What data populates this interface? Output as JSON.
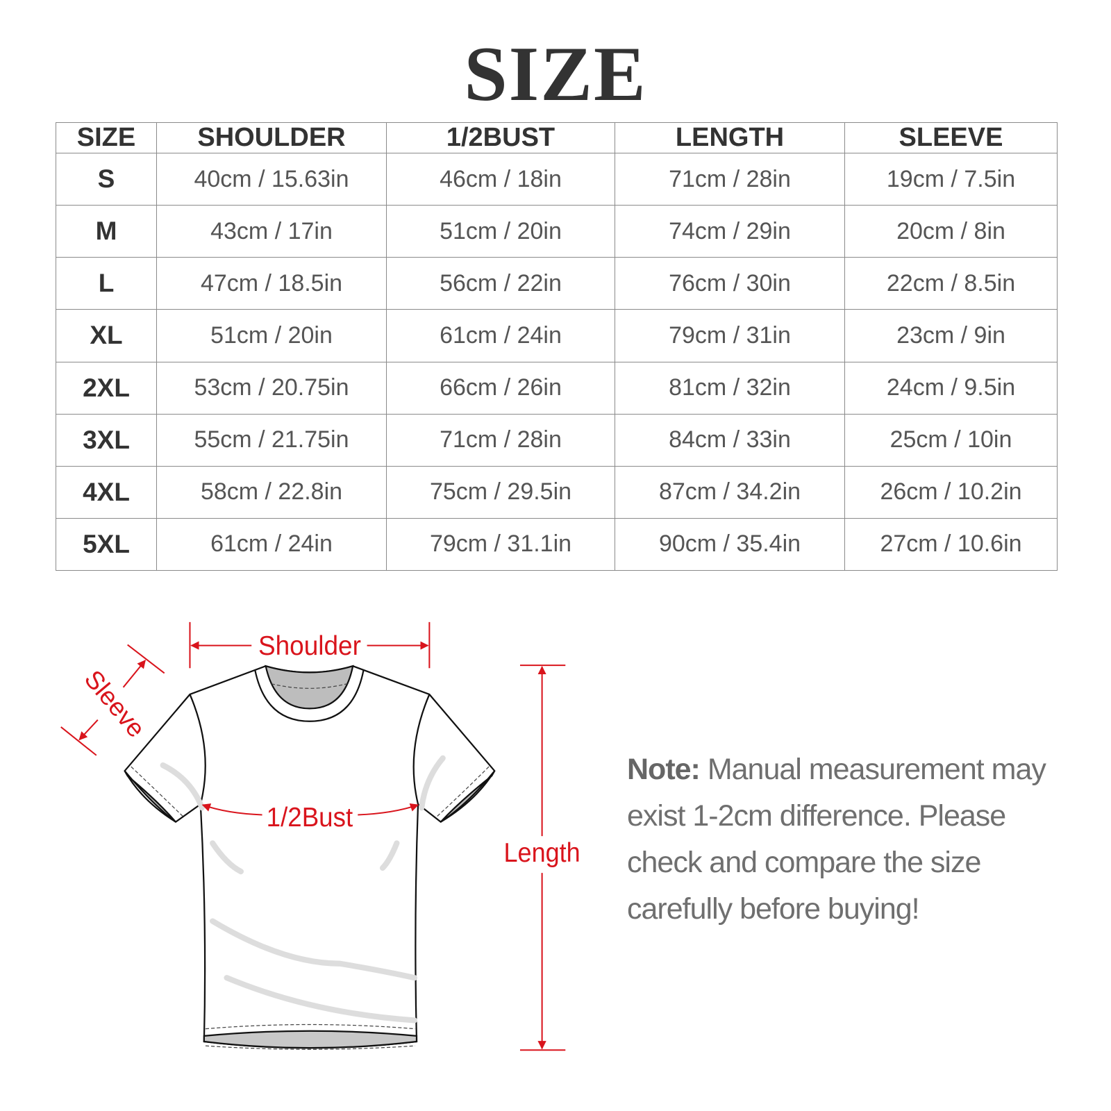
{
  "title": "SIZE",
  "table": {
    "headers": [
      "SIZE",
      "SHOULDER",
      "1/2BUST",
      "LENGTH",
      "SLEEVE"
    ],
    "rows": [
      [
        "S",
        "40cm / 15.63in",
        "46cm / 18in",
        "71cm / 28in",
        "19cm / 7.5in"
      ],
      [
        "M",
        "43cm / 17in",
        "51cm / 20in",
        "74cm / 29in",
        "20cm / 8in"
      ],
      [
        "L",
        "47cm / 18.5in",
        "56cm / 22in",
        "76cm / 30in",
        "22cm / 8.5in"
      ],
      [
        "XL",
        "51cm / 20in",
        "61cm / 24in",
        "79cm / 31in",
        "23cm / 9in"
      ],
      [
        "2XL",
        "53cm / 20.75in",
        "66cm / 26in",
        "81cm / 32in",
        "24cm / 9.5in"
      ],
      [
        "3XL",
        "55cm / 21.75in",
        "71cm / 28in",
        "84cm / 33in",
        "25cm / 10in"
      ],
      [
        "4XL",
        "58cm / 22.8in",
        "75cm / 29.5in",
        "87cm / 34.2in",
        "26cm / 10.2in"
      ],
      [
        "5XL",
        "61cm / 24in",
        "79cm / 31.1in",
        "90cm / 35.4in",
        "27cm / 10.6in"
      ]
    ]
  },
  "diagram": {
    "labels": {
      "shoulder": "Shoulder",
      "sleeve": "Sleeve",
      "bust": "1/2Bust",
      "length": "Length"
    },
    "accent_color": "#d9141c"
  },
  "note": {
    "label": "Note:",
    "text": "Manual measurement may exist 1-2cm difference. Please check and compare the size carefully before buying!"
  }
}
